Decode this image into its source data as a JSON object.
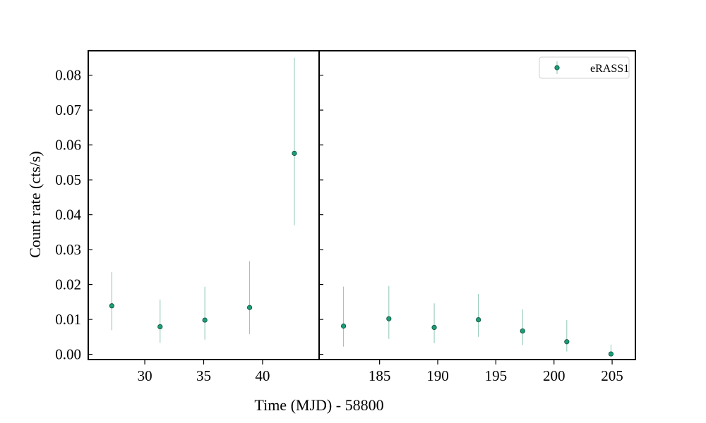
{
  "chart_data": {
    "type": "scatter",
    "xlabel": "Time (MJD) - 58800",
    "ylabel": "Count rate (cts/s)",
    "ylim": [
      -0.0015,
      0.087
    ],
    "yticks": [
      "0.00",
      "0.01",
      "0.02",
      "0.03",
      "0.04",
      "0.05",
      "0.06",
      "0.07",
      "0.08"
    ],
    "colors": {
      "marker": "#1b9e77",
      "errorbar": "#8cc7b2",
      "axes": "#000000"
    },
    "legend": {
      "placement": "top-right",
      "label": "eRASS1"
    },
    "panels": [
      {
        "name": "left",
        "xlim": [
          25.2,
          44.8
        ],
        "xticks": [
          "30",
          "35",
          "40"
        ],
        "points": [
          {
            "x": 27.2,
            "y": 0.0139,
            "yerr_low": 0.0069,
            "yerr_high": 0.0236
          },
          {
            "x": 31.3,
            "y": 0.0079,
            "yerr_low": 0.0033,
            "yerr_high": 0.0157
          },
          {
            "x": 35.1,
            "y": 0.0098,
            "yerr_low": 0.0042,
            "yerr_high": 0.0194
          },
          {
            "x": 38.9,
            "y": 0.0134,
            "yerr_low": 0.0058,
            "yerr_high": 0.0267
          },
          {
            "x": 42.7,
            "y": 0.0576,
            "yerr_low": 0.037,
            "yerr_high": 0.085
          }
        ]
      },
      {
        "name": "right",
        "xlim": [
          179.8,
          207.0
        ],
        "xticks": [
          "185",
          "190",
          "195",
          "200",
          "205"
        ],
        "points": [
          {
            "x": 181.9,
            "y": 0.0081,
            "yerr_low": 0.0022,
            "yerr_high": 0.0194
          },
          {
            "x": 185.8,
            "y": 0.0102,
            "yerr_low": 0.0044,
            "yerr_high": 0.0196
          },
          {
            "x": 189.7,
            "y": 0.0077,
            "yerr_low": 0.0032,
            "yerr_high": 0.0146
          },
          {
            "x": 193.5,
            "y": 0.0099,
            "yerr_low": 0.005,
            "yerr_high": 0.0173
          },
          {
            "x": 197.3,
            "y": 0.0067,
            "yerr_low": 0.0027,
            "yerr_high": 0.0129
          },
          {
            "x": 201.1,
            "y": 0.0036,
            "yerr_low": 0.0008,
            "yerr_high": 0.0098
          },
          {
            "x": 204.9,
            "y": 0.0001,
            "yerr_low": -0.0001,
            "yerr_high": 0.0028
          }
        ]
      }
    ]
  }
}
